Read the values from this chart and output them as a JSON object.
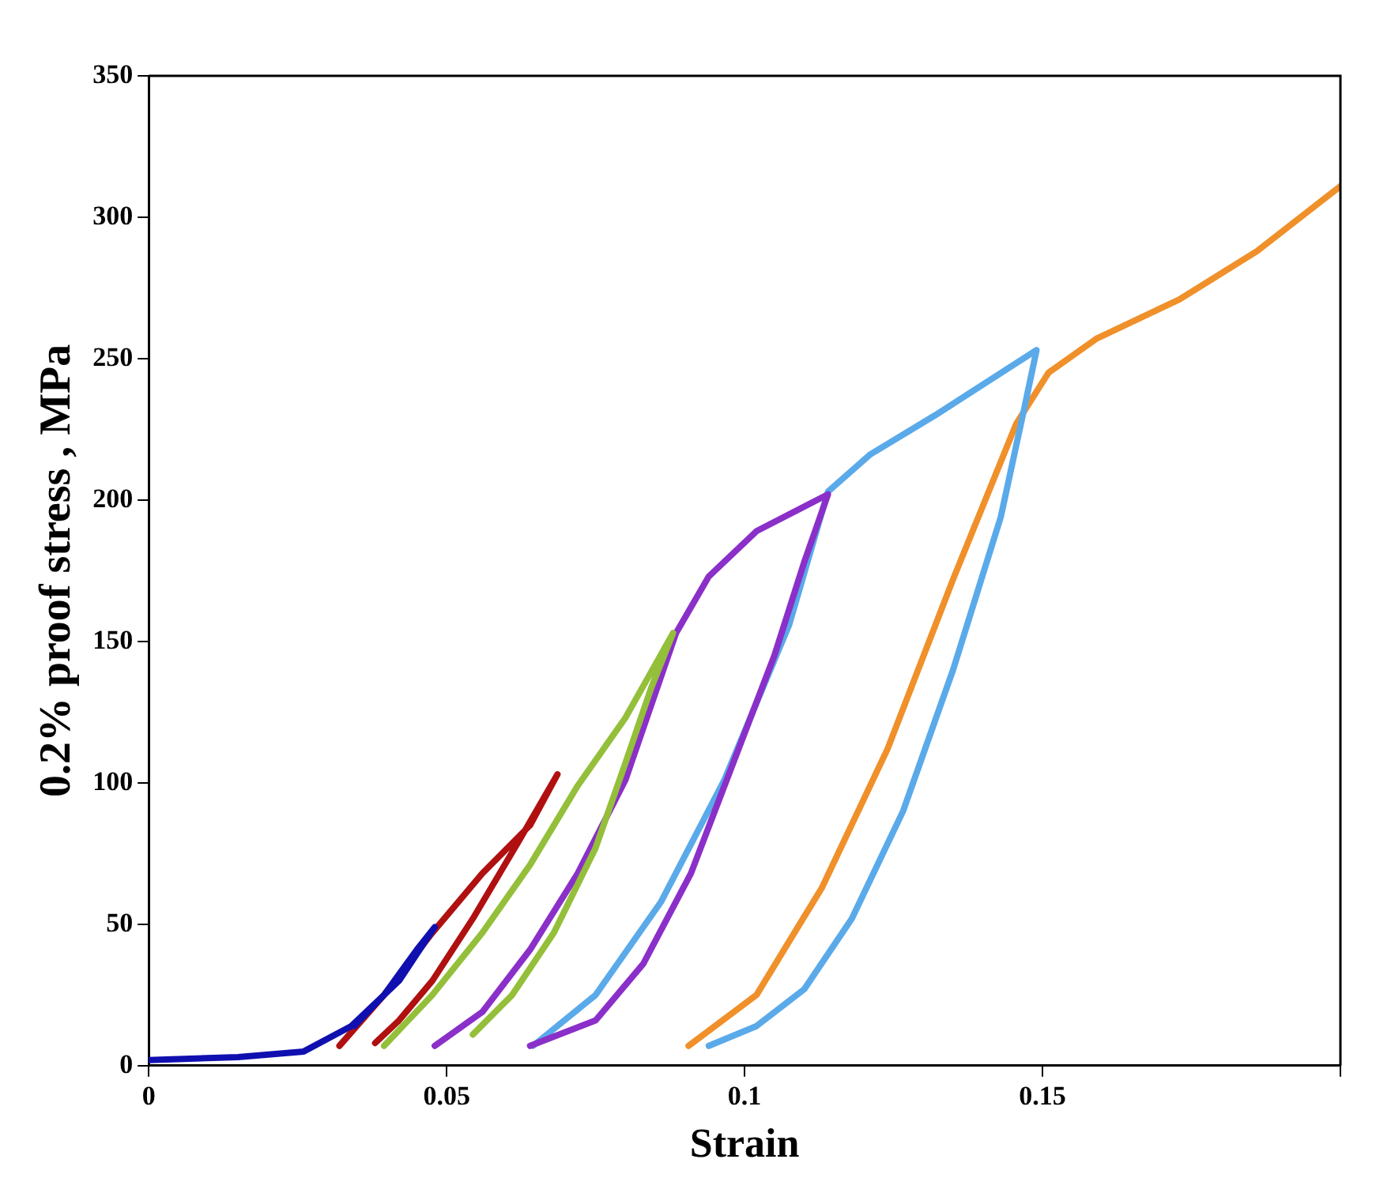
{
  "chart_data": {
    "type": "line",
    "xlabel": "Strain",
    "ylabel": "0.2% proof stress , MPa",
    "xlim": [
      0,
      0.2
    ],
    "ylim": [
      0,
      350
    ],
    "xticks": [
      0,
      0.05,
      0.1,
      0.15,
      {
        "value": 0.2,
        "label": null
      }
    ],
    "yticks": [
      0,
      50,
      100,
      150,
      200,
      250,
      300,
      350
    ],
    "grid": false,
    "legend": false,
    "marker": "none",
    "series": [
      {
        "color": "#1010b0",
        "x": [
          0,
          0.015,
          0.026,
          0.034,
          0.042,
          0.048,
          0.045,
          0.0395,
          0.0345
        ],
        "values": [
          2,
          3,
          5,
          14,
          30,
          49,
          41,
          25,
          14
        ]
      },
      {
        "color": "#b01010",
        "x": [
          0.032,
          0.0395,
          0.0476,
          0.056,
          0.064,
          0.0686,
          0.062,
          0.0544,
          0.0476,
          0.042,
          0.038
        ],
        "values": [
          7,
          25,
          47,
          68,
          85,
          103,
          79,
          52,
          30,
          16,
          8
        ]
      },
      {
        "color": "#94bf3a",
        "x": [
          0.0395,
          0.0476,
          0.056,
          0.064,
          0.072,
          0.08,
          0.088,
          0.0844,
          0.08,
          0.075,
          0.068,
          0.061,
          0.0544
        ],
        "values": [
          7,
          25,
          47,
          71,
          99,
          123,
          153,
          134,
          107,
          77,
          47,
          25,
          11
        ]
      },
      {
        "color": "#8b2fc9",
        "x": [
          0.048,
          0.056,
          0.064,
          0.072,
          0.08,
          0.0885,
          0.094,
          0.102,
          0.114,
          0.11,
          0.105,
          0.099,
          0.091,
          0.083,
          0.075,
          0.064
        ],
        "values": [
          7,
          19,
          41,
          68,
          101,
          153,
          173,
          189,
          202,
          178,
          145,
          112,
          68,
          36,
          16,
          7
        ]
      },
      {
        "color": "#5aaaea",
        "x": [
          0.0645,
          0.075,
          0.086,
          0.0966,
          0.1075,
          0.114,
          0.121,
          0.132,
          0.149,
          0.147,
          0.143,
          0.135,
          0.1266,
          0.118,
          0.11,
          0.102,
          0.094
        ],
        "values": [
          7,
          25,
          58,
          101,
          156,
          203,
          216,
          230,
          253,
          233,
          194,
          140,
          90,
          52,
          27,
          14,
          7
        ]
      },
      {
        "color": "#f0902a",
        "x": [
          0.0906,
          0.102,
          0.113,
          0.124,
          0.135,
          0.1456,
          0.151,
          0.159,
          0.173,
          0.186,
          0.2
        ],
        "values": [
          7,
          25,
          63,
          112,
          172,
          227,
          245,
          257,
          271,
          288,
          311
        ]
      }
    ]
  }
}
